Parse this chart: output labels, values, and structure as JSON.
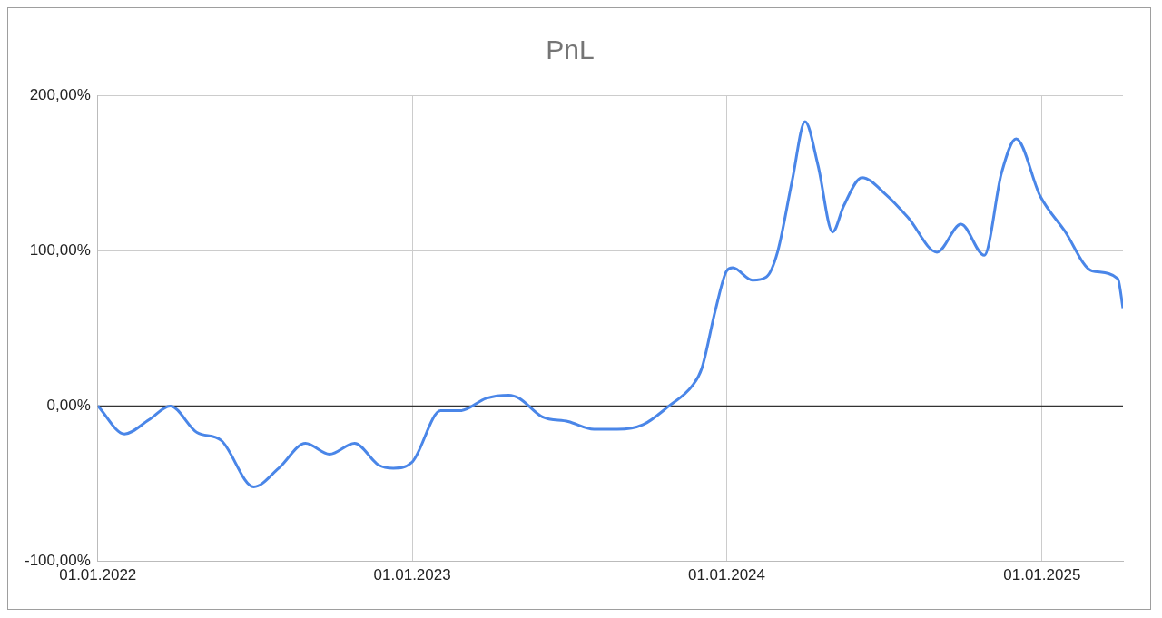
{
  "chart_data": {
    "type": "line",
    "title": "PnL",
    "x": [
      "2022-01-01",
      "2022-02-01",
      "2022-03-01",
      "2022-03-26",
      "2022-04-26",
      "2022-05-24",
      "2022-07-01",
      "2022-07-30",
      "2022-08-30",
      "2022-09-27",
      "2022-10-26",
      "2022-11-23",
      "2022-12-10",
      "2023-01-01",
      "2023-02-03",
      "2023-02-26",
      "2023-03-28",
      "2023-04-23",
      "2023-05-05",
      "2023-06-01",
      "2023-07-01",
      "2023-07-31",
      "2023-08-27",
      "2023-09-26",
      "2023-10-26",
      "2023-11-22",
      "2023-12-03",
      "2023-12-19",
      "2024-01-01",
      "2024-01-08",
      "2024-01-31",
      "2024-02-16",
      "2024-02-29",
      "2024-03-17",
      "2024-04-01",
      "2024-04-16",
      "2024-05-03",
      "2024-05-16",
      "2024-06-06",
      "2024-07-04",
      "2024-07-30",
      "2024-09-01",
      "2024-09-29",
      "2024-10-26",
      "2024-11-15",
      "2024-12-02",
      "2024-12-30",
      "2025-01-27",
      "2025-02-28",
      "2025-03-30",
      "2025-04-05"
    ],
    "series": [
      {
        "color": "#4a86e8",
        "values": [
          0,
          -18,
          -9,
          0,
          -17,
          -22,
          -52,
          -40,
          -24,
          -31,
          -24,
          -38,
          -40,
          -36,
          -3,
          -3,
          5,
          7,
          5,
          -7,
          -10,
          -15,
          -15,
          -12,
          0,
          13,
          24,
          62,
          87,
          89,
          81,
          83,
          99,
          145,
          183,
          155,
          112,
          129,
          147,
          136,
          121,
          99,
          117,
          97,
          150,
          172,
          135,
          113,
          87,
          82,
          63
        ]
      }
    ],
    "xlim": [
      "2022-01-01",
      "2025-04-05"
    ],
    "xticks": [
      {
        "value": "2022-01-01",
        "label": "01.01.2022"
      },
      {
        "value": "2023-01-01",
        "label": "01.01.2023"
      },
      {
        "value": "2024-01-01",
        "label": "01.01.2024"
      },
      {
        "value": "2025-01-01",
        "label": "01.01.2025"
      }
    ],
    "ylim": [
      -100,
      200
    ],
    "yticks": [
      {
        "value": -100,
        "label": "-100,00%"
      },
      {
        "value": 0,
        "label": "0,00%"
      },
      {
        "value": 100,
        "label": "100,00%"
      },
      {
        "value": 200,
        "label": "200,00%"
      }
    ],
    "ref_lines": [
      {
        "axis": "y",
        "value": 0,
        "color": "#333333"
      }
    ],
    "grid": true,
    "legend": false,
    "marker": "none",
    "line_style": "solid"
  }
}
